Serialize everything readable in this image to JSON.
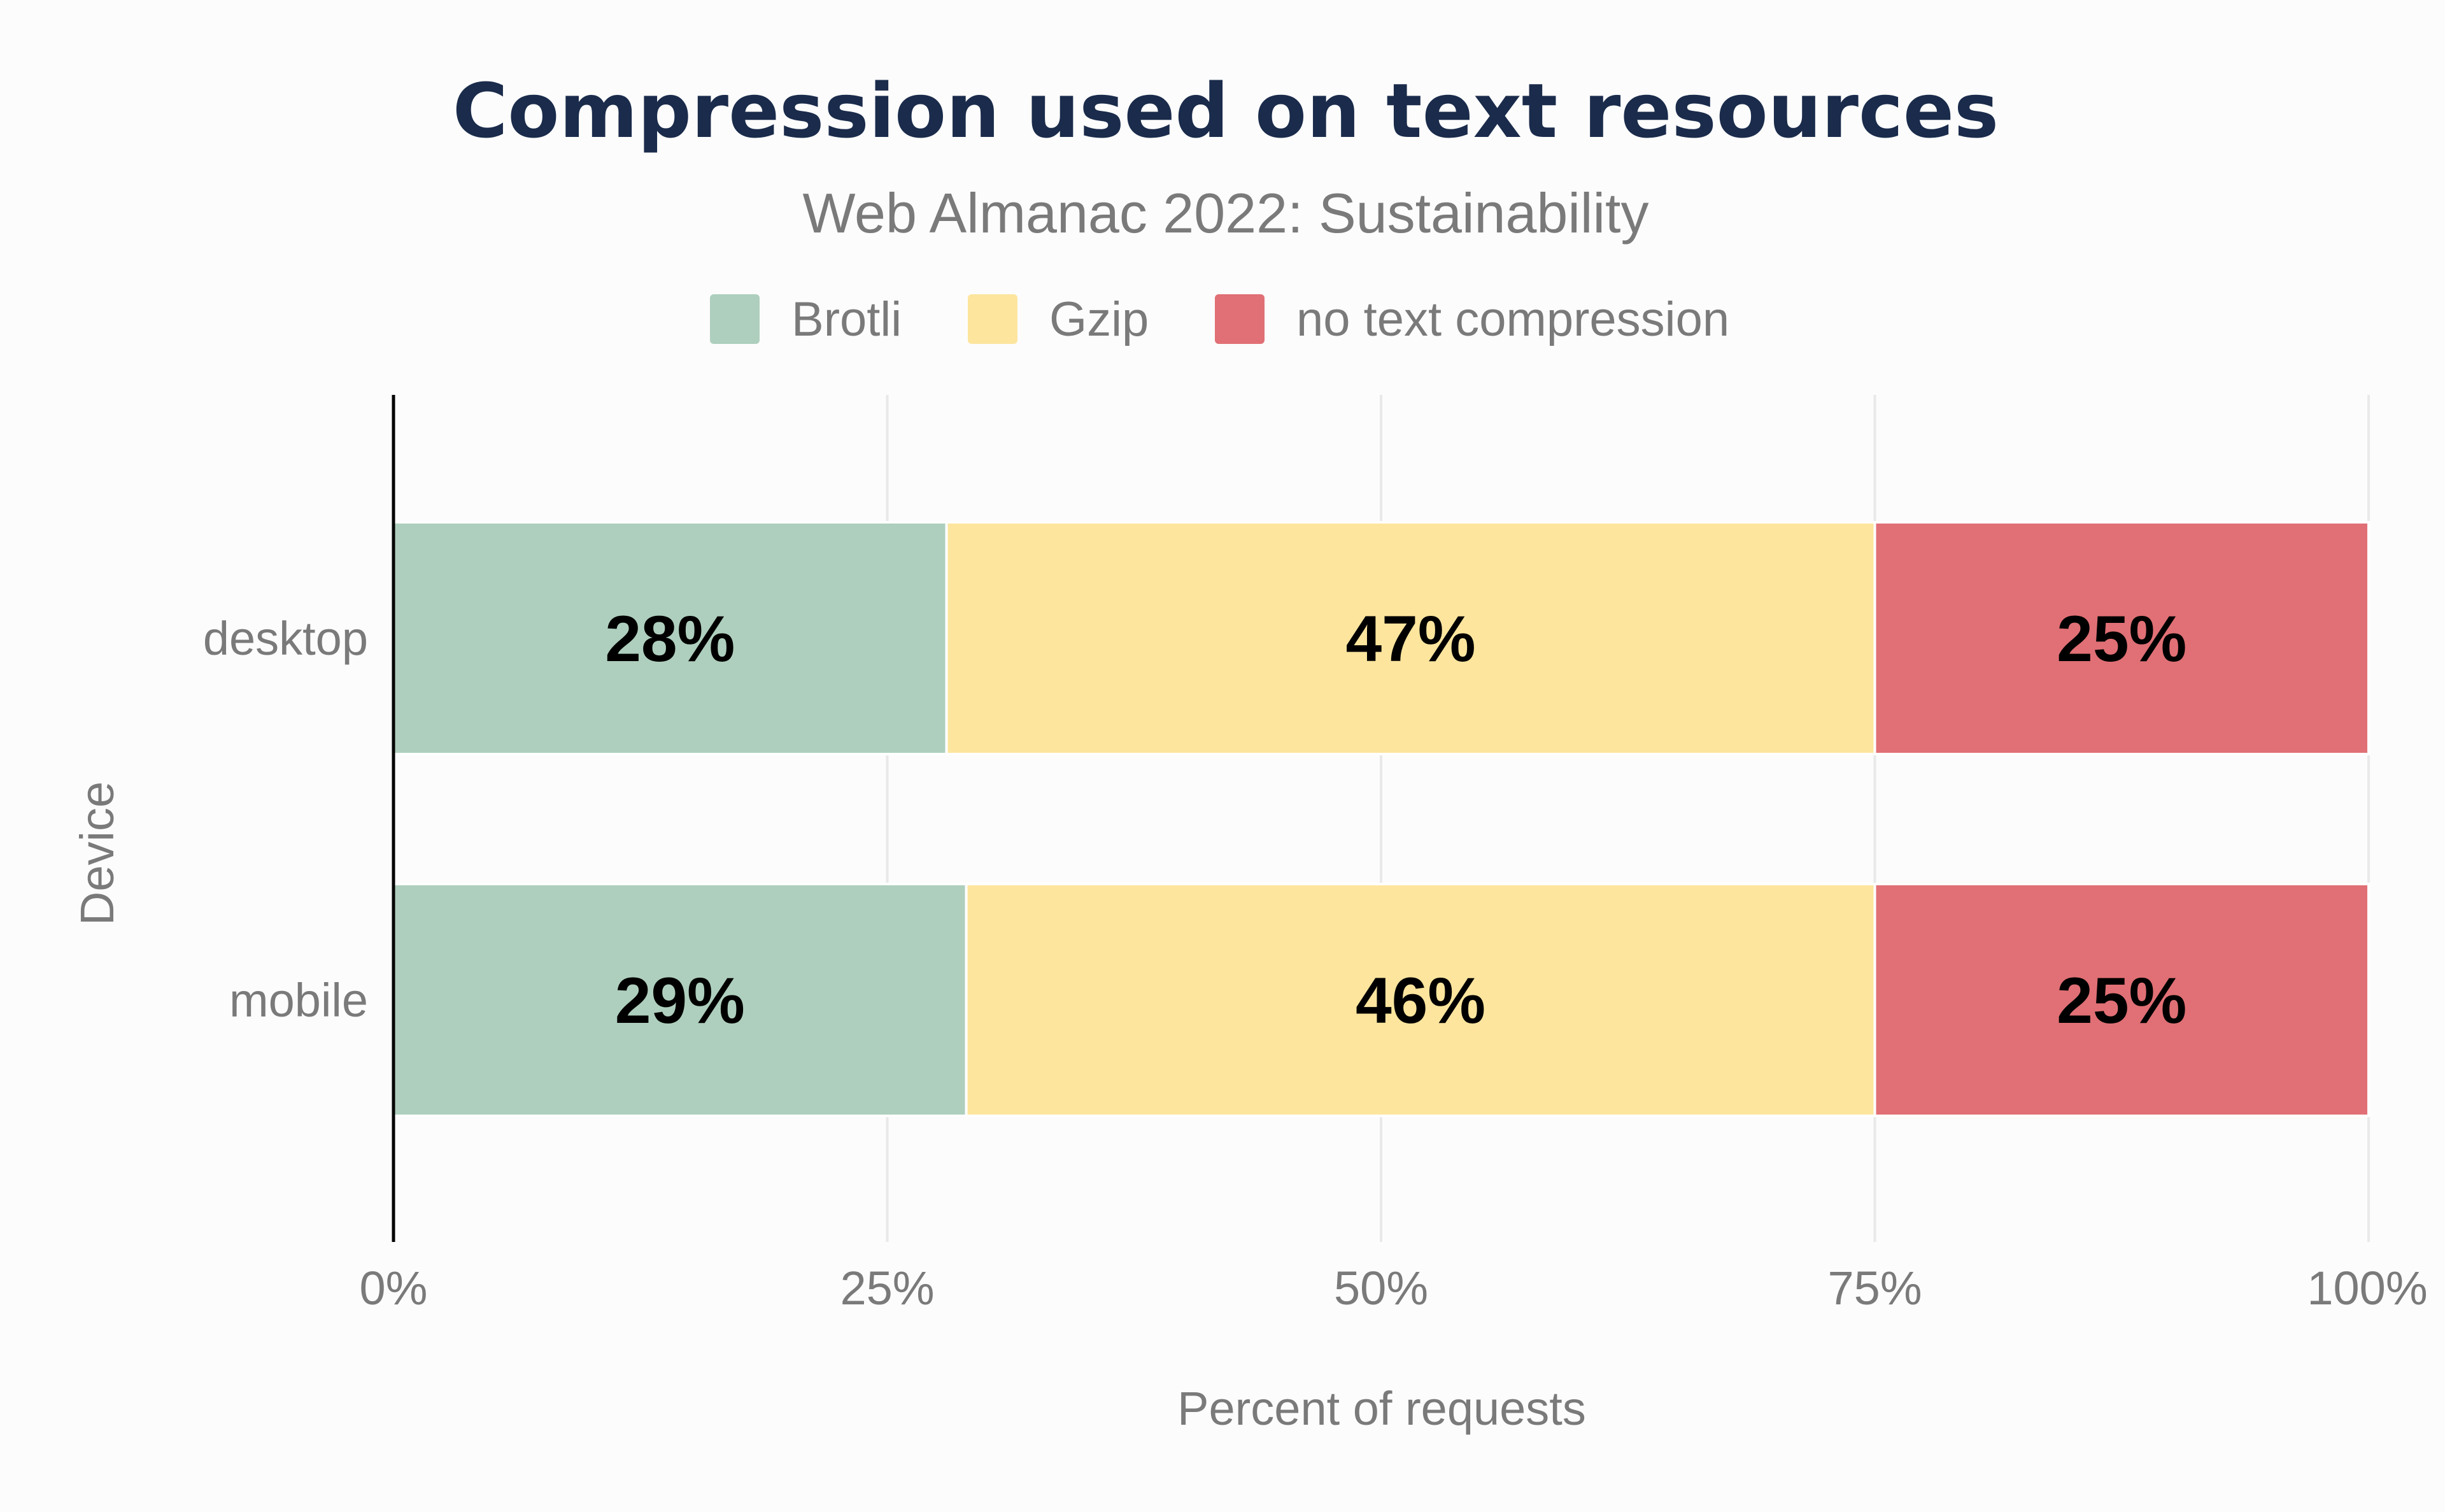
{
  "chart_data": {
    "type": "bar",
    "orientation": "horizontal",
    "stacked": true,
    "title": "Compression used on text resources",
    "subtitle": "Web Almanac 2022: Sustainability",
    "xlabel": "Percent of requests",
    "ylabel": "Device",
    "xlim": [
      0,
      100
    ],
    "x_ticks": [
      "0%",
      "25%",
      "50%",
      "75%",
      "100%"
    ],
    "x_tick_values": [
      0,
      25,
      50,
      75,
      100
    ],
    "categories": [
      "desktop",
      "mobile"
    ],
    "series": [
      {
        "name": "Brotli",
        "color": "#aecfbd",
        "values": [
          28,
          29
        ],
        "labels": [
          "28%",
          "29%"
        ]
      },
      {
        "name": "Gzip",
        "color": "#fde59e",
        "values": [
          47,
          46
        ],
        "labels": [
          "47%",
          "46%"
        ]
      },
      {
        "name": "no text compression",
        "color": "#e07075",
        "values": [
          25,
          25
        ],
        "labels": [
          "25%",
          "25%"
        ]
      }
    ],
    "legend_position": "top",
    "grid": true
  }
}
